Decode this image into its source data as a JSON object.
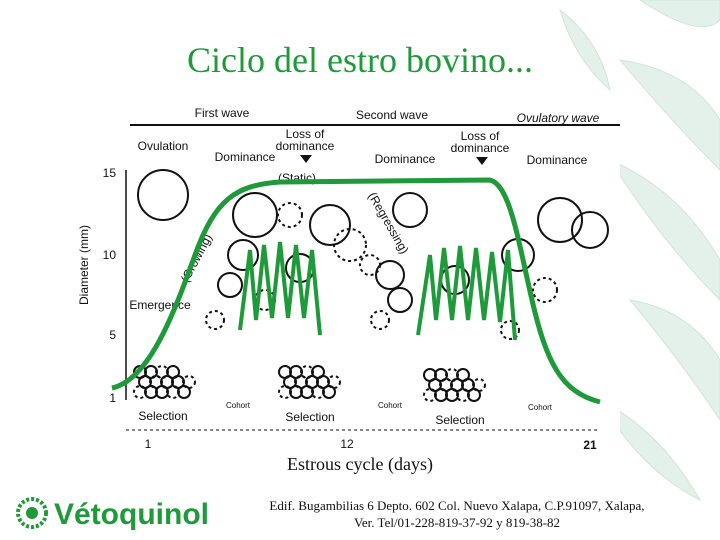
{
  "title": "Ciclo del estro bovino...",
  "diagram": {
    "waves": [
      "First wave",
      "Second wave",
      "Ovulatory wave"
    ],
    "ovulation": "Ovulation",
    "loss_of_dominance": [
      [
        "Loss of",
        "dominance"
      ],
      [
        "Loss of",
        "dominance"
      ]
    ],
    "dominance": [
      "Dominance",
      "Dominance",
      "Dominance"
    ],
    "phases": [
      "(Static)",
      "(Regressing)",
      "(Growing)"
    ],
    "emergence": "Emergence",
    "selection": [
      "Selection",
      "Selection",
      "Selection"
    ],
    "cohort": [
      "Cohort",
      "Cohort",
      "Cohort"
    ],
    "y_axis_label": "Diameter (mm)",
    "y_ticks": [
      "15",
      "10",
      "5",
      "1"
    ],
    "x_ticks": [
      "1",
      "12",
      "21"
    ],
    "x_axis_label": "Estrous cycle (days)"
  },
  "footer": {
    "address": [
      "Edif. Bugambilias 6 Depto. 602 Col. Nuevo Xalapa, C.P.91097, Xalapa,",
      "Ver. Tel/01-228-819-37-92 y 819-38-82"
    ]
  },
  "logo": "Vétoquinol"
}
